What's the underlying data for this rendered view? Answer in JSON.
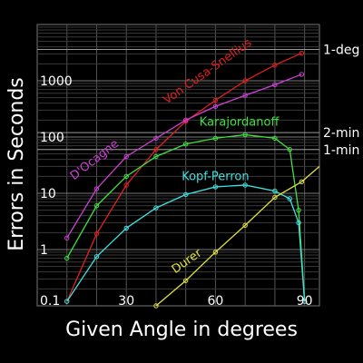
{
  "chart_data": {
    "type": "line",
    "xlabel": "Given Angle in degrees",
    "ylabel": "Errors in Seconds",
    "xlim": [
      0,
      95
    ],
    "ylog": true,
    "ylim": [
      0.1,
      10000
    ],
    "grid": true,
    "xticks": [
      {
        "value": 30,
        "label": "30"
      },
      {
        "value": 60,
        "label": "60"
      },
      {
        "value": 90,
        "label": "90"
      }
    ],
    "yticks": [
      {
        "value": 0.1,
        "label": "0.1"
      },
      {
        "value": 1,
        "label": "1"
      },
      {
        "value": 10,
        "label": "10"
      },
      {
        "value": 100,
        "label": "100"
      },
      {
        "value": 1000,
        "label": "1000"
      }
    ],
    "reference_lines": [
      {
        "label": "1-deg",
        "value": 3600
      },
      {
        "label": "2-min",
        "value": 120
      },
      {
        "label": "1-min",
        "value": 60
      }
    ],
    "series": [
      {
        "name": "Von Cusa-Snellius",
        "color": "#e02020",
        "x": [
          10,
          20,
          30,
          40,
          50,
          60,
          70,
          80,
          89
        ],
        "y": [
          0.12,
          1.9,
          14,
          60,
          190,
          450,
          1000,
          1900,
          3100
        ],
        "label_pos": [
          58,
          1300
        ],
        "label_angle": -35
      },
      {
        "name": "D'Ocagne",
        "color": "#d040d8",
        "x": [
          10,
          20,
          30,
          40,
          50,
          60,
          70,
          80,
          89
        ],
        "y": [
          1.6,
          12,
          45,
          95,
          200,
          350,
          550,
          850,
          1300
        ],
        "label_pos": [
          20,
          35
        ],
        "label_angle": -38
      },
      {
        "name": "Karajordanoff",
        "color": "#40e040",
        "x": [
          10,
          20,
          30,
          40,
          50,
          60,
          70,
          80,
          85,
          88,
          90
        ],
        "y": [
          0.7,
          6,
          20,
          45,
          75,
          95,
          110,
          95,
          60,
          5,
          0.12
        ],
        "label_pos": [
          68,
          160
        ],
        "label_angle": 0
      },
      {
        "name": "Kopf-Perron",
        "color": "#40e0e0",
        "x": [
          10,
          20,
          30,
          40,
          50,
          60,
          70,
          80,
          85,
          88,
          90
        ],
        "y": [
          0.12,
          0.75,
          2.4,
          5.5,
          9.5,
          13,
          14,
          11,
          8,
          3,
          0.12
        ],
        "label_pos": [
          60,
          17
        ],
        "label_angle": 0
      },
      {
        "name": "Durer",
        "color": "#e0e040",
        "x": [
          40,
          50,
          60,
          70,
          80,
          89
        ],
        "y": [
          0.1,
          0.28,
          0.9,
          2.7,
          8.5,
          16
        ],
        "label_pos": [
          51,
          0.55
        ],
        "label_angle": -35
      },
      {
        "name": "",
        "color": "#e0e040",
        "x": [
          89,
          95
        ],
        "y": [
          16,
          30
        ],
        "label_pos": null,
        "label_angle": 0
      }
    ]
  }
}
